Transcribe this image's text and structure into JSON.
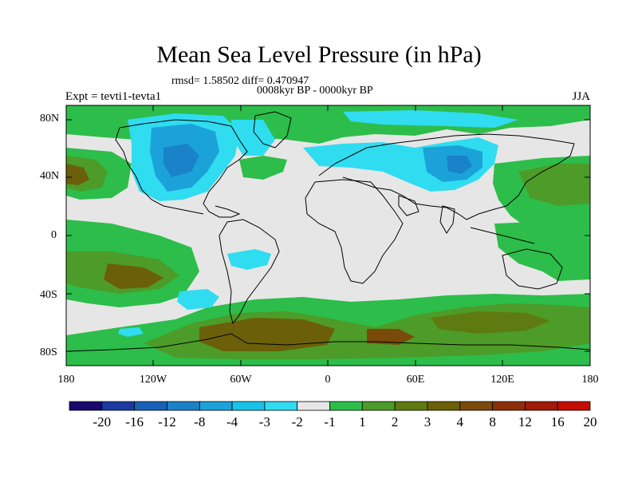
{
  "title": "Mean Sea Level Pressure (in hPa)",
  "stats": "rmsd= 1.58502 diff= 0.470947",
  "period": "0008kyr BP - 0000kyr BP",
  "experiment": "Expt = tevti1-tevta1",
  "season": "JJA",
  "lat_labels": [
    "80N",
    "40N",
    "0",
    "40S",
    "80S"
  ],
  "lon_labels": [
    "180",
    "120W",
    "60W",
    "0",
    "60E",
    "120E",
    "180"
  ],
  "colorbar": {
    "labels": [
      "-20",
      "-16",
      "-12",
      "-8",
      "-4",
      "-3",
      "-2",
      "-1",
      "1",
      "2",
      "3",
      "4",
      "8",
      "12",
      "16",
      "20"
    ],
    "colors": [
      "#1a0a6e",
      "#1a3aa0",
      "#1760b8",
      "#1a82c8",
      "#1ba2d8",
      "#19c2e8",
      "#30dcf0",
      "#e6e6e6",
      "#2dbd4a",
      "#4d9b28",
      "#5e7a10",
      "#6b5f0a",
      "#7a4a0a",
      "#8c2e08",
      "#a01a08",
      "#c40c00"
    ]
  },
  "map_colors": {
    "neutral": "#e6e6e6",
    "green": "#2dbd4a",
    "darkgreen": "#4d9b28",
    "olive": "#5e7a10",
    "brown": "#6b5f0a",
    "lightcyan": "#30dcf0",
    "cyan": "#1ba2d8",
    "blue": "#1a82c8",
    "coast": "#000000"
  }
}
